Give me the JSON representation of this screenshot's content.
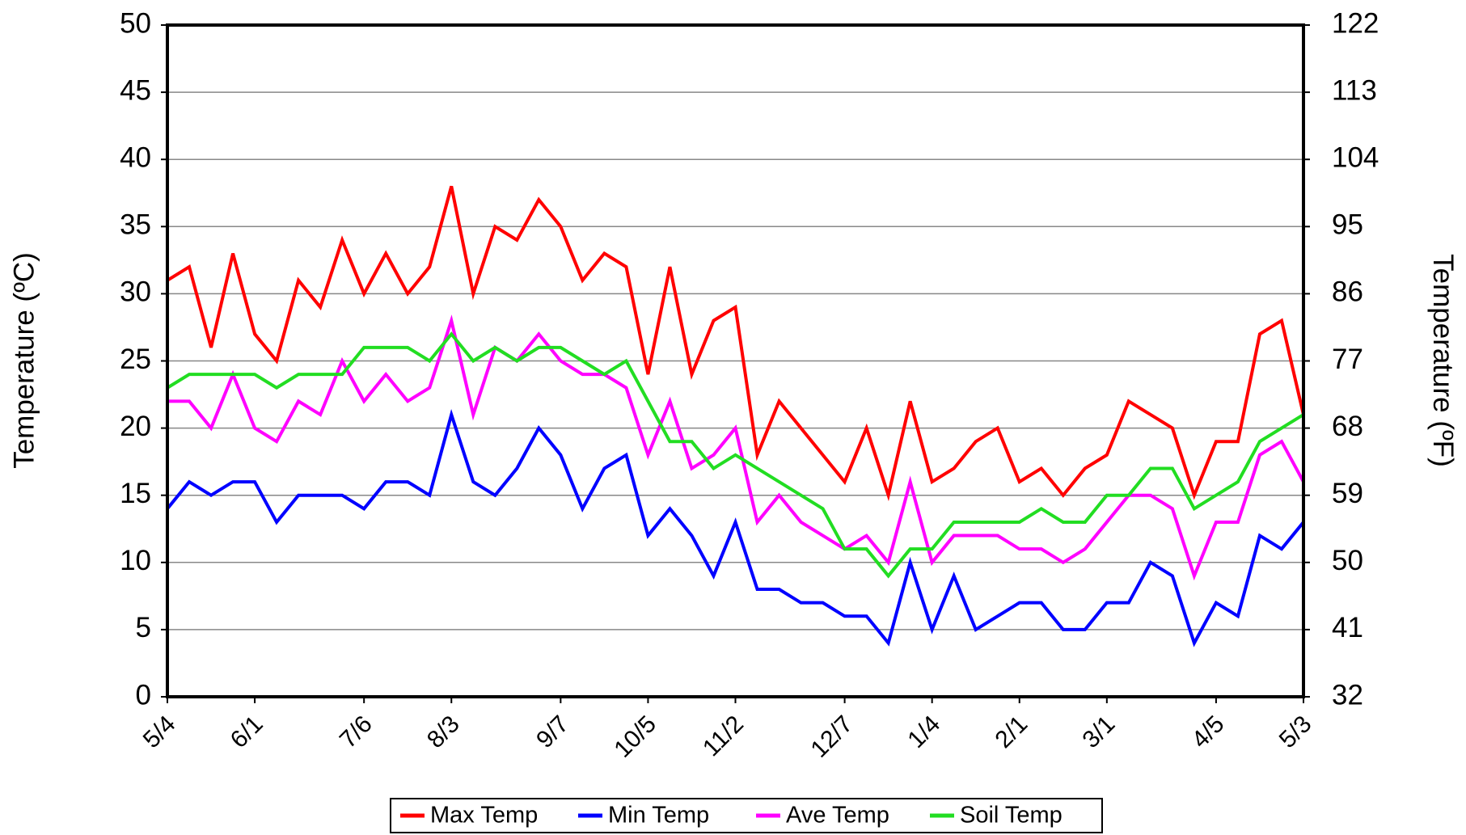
{
  "chart_data": {
    "type": "line",
    "y_label": "Temperature (ºC)",
    "y2_label": "Temperature (ºF)",
    "categories": [
      "5/4",
      null,
      null,
      null,
      "6/1",
      null,
      null,
      null,
      null,
      "7/6",
      null,
      null,
      null,
      "8/3",
      null,
      null,
      null,
      null,
      "9/7",
      null,
      null,
      null,
      "10/5",
      null,
      null,
      null,
      "11/2",
      null,
      null,
      null,
      null,
      "12/7",
      null,
      null,
      null,
      "1/4",
      null,
      null,
      null,
      "2/1",
      null,
      null,
      null,
      "3/1",
      null,
      null,
      null,
      null,
      "4/5",
      null,
      null,
      null,
      "5/3"
    ],
    "series": [
      {
        "name": "Max Temp",
        "color": "#ff0000",
        "values": [
          31,
          32,
          26,
          33,
          27,
          25,
          31,
          29,
          34,
          30,
          33,
          30,
          32,
          38,
          30,
          35,
          34,
          37,
          35,
          31,
          33,
          32,
          24,
          32,
          24,
          28,
          29,
          18,
          22,
          20,
          18,
          16,
          20,
          15,
          22,
          16,
          17,
          19,
          20,
          16,
          17,
          15,
          17,
          18,
          22,
          21,
          20,
          15,
          19,
          19,
          27,
          28,
          21
        ]
      },
      {
        "name": "Min Temp",
        "color": "#0000ff",
        "values": [
          14,
          16,
          15,
          16,
          16,
          13,
          15,
          15,
          15,
          14,
          16,
          16,
          15,
          21,
          16,
          15,
          17,
          20,
          18,
          14,
          17,
          18,
          12,
          14,
          12,
          9,
          13,
          8,
          8,
          7,
          7,
          6,
          6,
          4,
          10,
          5,
          9,
          5,
          6,
          7,
          7,
          5,
          5,
          7,
          7,
          10,
          9,
          4,
          7,
          6,
          12,
          11,
          13
        ]
      },
      {
        "name": "Ave Temp",
        "color": "#ff00ff",
        "values": [
          22,
          22,
          20,
          24,
          20,
          19,
          22,
          21,
          25,
          22,
          24,
          22,
          23,
          28,
          21,
          26,
          25,
          27,
          25,
          24,
          24,
          23,
          18,
          22,
          17,
          18,
          20,
          13,
          15,
          13,
          12,
          11,
          12,
          10,
          16,
          10,
          12,
          12,
          12,
          11,
          11,
          10,
          11,
          13,
          15,
          15,
          14,
          9,
          13,
          13,
          18,
          19,
          16
        ]
      },
      {
        "name": "Soil Temp",
        "color": "#22dd22",
        "values": [
          23,
          24,
          24,
          24,
          24,
          23,
          24,
          24,
          24,
          26,
          26,
          26,
          25,
          27,
          25,
          26,
          25,
          26,
          26,
          25,
          24,
          25,
          22,
          19,
          19,
          17,
          18,
          17,
          16,
          15,
          14,
          11,
          11,
          9,
          11,
          11,
          13,
          13,
          13,
          13,
          14,
          13,
          13,
          15,
          15,
          17,
          17,
          14,
          15,
          16,
          19,
          20,
          21
        ]
      }
    ],
    "ylim": [
      0,
      50
    ],
    "yticks": [
      0,
      5,
      10,
      15,
      20,
      25,
      30,
      35,
      40,
      45,
      50
    ],
    "y2lim": [
      32,
      122
    ],
    "y2ticks": [
      32,
      41,
      50,
      59,
      68,
      77,
      86,
      95,
      104,
      113,
      122
    ],
    "grid": true,
    "legend": "bottom"
  }
}
